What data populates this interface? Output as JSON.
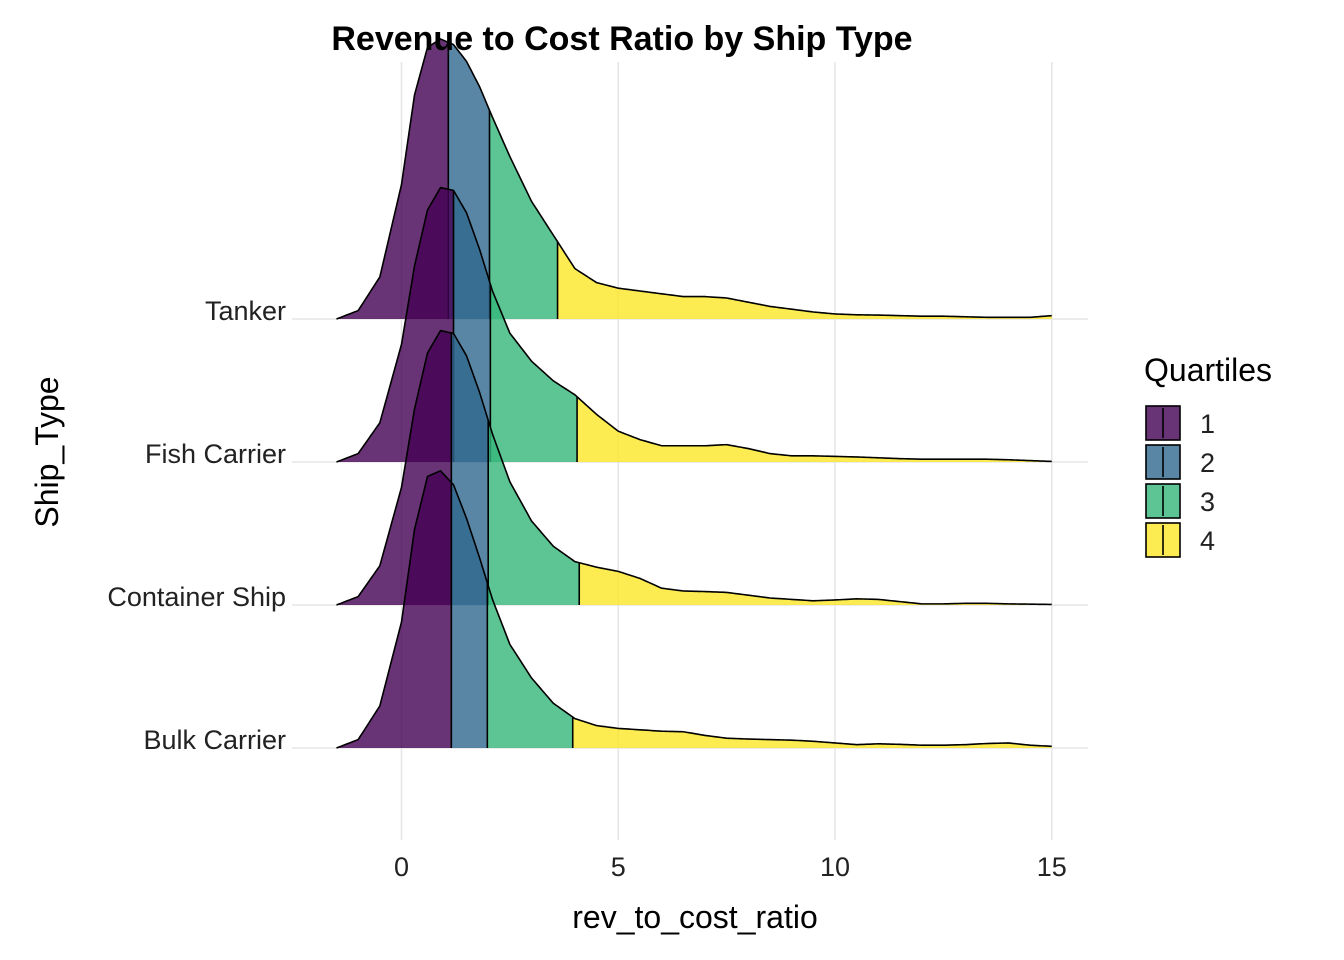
{
  "chart_data": {
    "type": "area",
    "title": "Revenue to Cost Ratio by Ship Type",
    "xlabel": "rev_to_cost_ratio",
    "ylabel": "Ship_Type",
    "xlim": [
      -1.5,
      15
    ],
    "x_ticks": [
      0,
      5,
      10,
      15
    ],
    "x_tick_labels": [
      "0",
      "5",
      "10",
      "15"
    ],
    "grid": true,
    "legend": {
      "title": "Quartiles",
      "position": "right",
      "items": [
        "1",
        "2",
        "3",
        "4"
      ]
    },
    "quartile_colors": [
      "#440154",
      "#31688E",
      "#35B779",
      "#FDE725"
    ],
    "fill_alpha": 0.8,
    "categories": [
      "Bulk Carrier",
      "Container Ship",
      "Fish Carrier",
      "Tanker"
    ],
    "series": [
      {
        "name": "Bulk Carrier",
        "quartiles": [
          1.15,
          1.98,
          3.95
        ],
        "density_x": [
          -1.5,
          -1.0,
          -0.5,
          0.0,
          0.3,
          0.6,
          0.9,
          1.2,
          1.5,
          1.8,
          2.1,
          2.5,
          3.0,
          3.5,
          4.0,
          4.5,
          5.0,
          5.5,
          6.0,
          6.5,
          7.0,
          7.5,
          8.0,
          8.5,
          9.0,
          9.5,
          10.0,
          10.5,
          11.0,
          11.5,
          12.0,
          12.5,
          13.0,
          13.5,
          14.0,
          14.5,
          15.0
        ],
        "density_y": [
          0.0,
          0.03,
          0.15,
          0.45,
          0.78,
          0.97,
          0.99,
          0.94,
          0.82,
          0.68,
          0.53,
          0.37,
          0.25,
          0.16,
          0.105,
          0.08,
          0.07,
          0.065,
          0.06,
          0.058,
          0.045,
          0.035,
          0.032,
          0.03,
          0.028,
          0.024,
          0.018,
          0.012,
          0.015,
          0.013,
          0.01,
          0.01,
          0.012,
          0.016,
          0.018,
          0.01,
          0.006
        ]
      },
      {
        "name": "Container Ship",
        "quartiles": [
          1.15,
          2.0,
          4.1
        ],
        "density_x": [
          -1.5,
          -1.0,
          -0.5,
          0.0,
          0.3,
          0.6,
          0.9,
          1.2,
          1.5,
          1.8,
          2.1,
          2.5,
          3.0,
          3.5,
          4.0,
          4.5,
          5.0,
          5.5,
          6.0,
          6.5,
          7.0,
          7.5,
          8.0,
          8.5,
          9.0,
          9.5,
          10.0,
          10.5,
          11.0,
          11.5,
          12.0,
          12.5,
          13.0,
          13.5,
          14.0,
          14.5,
          15.0
        ],
        "density_y": [
          0.0,
          0.03,
          0.14,
          0.42,
          0.7,
          0.9,
          0.98,
          0.97,
          0.89,
          0.76,
          0.61,
          0.44,
          0.3,
          0.21,
          0.155,
          0.135,
          0.12,
          0.095,
          0.06,
          0.05,
          0.048,
          0.045,
          0.035,
          0.025,
          0.02,
          0.015,
          0.018,
          0.022,
          0.02,
          0.012,
          0.004,
          0.004,
          0.006,
          0.006,
          0.004,
          0.003,
          0.002
        ]
      },
      {
        "name": "Fish Carrier",
        "quartiles": [
          1.2,
          2.05,
          4.05
        ],
        "density_x": [
          -1.5,
          -1.0,
          -0.5,
          0.0,
          0.3,
          0.6,
          0.9,
          1.2,
          1.5,
          1.8,
          2.1,
          2.5,
          3.0,
          3.5,
          4.0,
          4.5,
          5.0,
          5.5,
          6.0,
          6.5,
          7.0,
          7.5,
          8.0,
          8.5,
          9.0,
          9.5,
          10.0,
          10.5,
          11.0,
          11.5,
          12.0,
          12.5,
          13.0,
          13.5,
          14.0,
          14.5,
          15.0
        ],
        "density_y": [
          0.0,
          0.03,
          0.14,
          0.42,
          0.7,
          0.9,
          0.98,
          0.97,
          0.89,
          0.76,
          0.61,
          0.46,
          0.36,
          0.29,
          0.24,
          0.17,
          0.11,
          0.08,
          0.058,
          0.058,
          0.058,
          0.062,
          0.048,
          0.03,
          0.022,
          0.022,
          0.02,
          0.018,
          0.015,
          0.012,
          0.01,
          0.01,
          0.01,
          0.01,
          0.008,
          0.005,
          0.002
        ]
      },
      {
        "name": "Tanker",
        "quartiles": [
          1.08,
          2.03,
          3.6
        ],
        "density_x": [
          -1.5,
          -1.0,
          -0.5,
          0.0,
          0.3,
          0.6,
          0.9,
          1.2,
          1.5,
          1.8,
          2.1,
          2.5,
          3.0,
          3.5,
          4.0,
          4.5,
          5.0,
          5.5,
          6.0,
          6.5,
          7.0,
          7.5,
          8.0,
          8.5,
          9.0,
          9.5,
          10.0,
          10.5,
          11.0,
          11.5,
          12.0,
          12.5,
          13.0,
          13.5,
          14.0,
          14.5,
          15.0
        ],
        "density_y": [
          0.0,
          0.03,
          0.15,
          0.48,
          0.8,
          0.97,
          1.0,
          0.98,
          0.92,
          0.83,
          0.72,
          0.58,
          0.42,
          0.3,
          0.18,
          0.13,
          0.11,
          0.1,
          0.09,
          0.08,
          0.08,
          0.075,
          0.06,
          0.045,
          0.035,
          0.025,
          0.018,
          0.015,
          0.014,
          0.012,
          0.01,
          0.01,
          0.008,
          0.006,
          0.006,
          0.006,
          0.012
        ]
      }
    ]
  }
}
